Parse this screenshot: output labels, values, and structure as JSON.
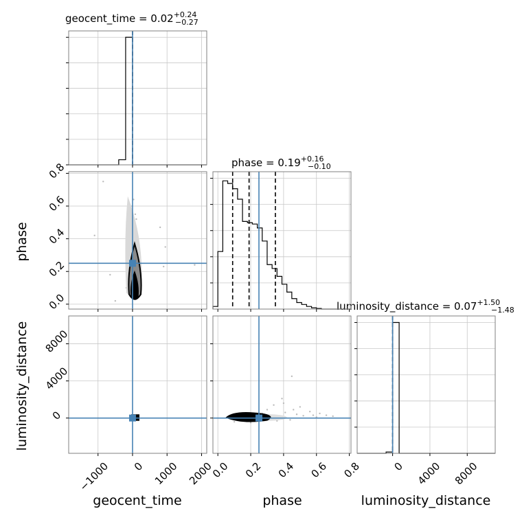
{
  "colors": {
    "truth": "#4682b4",
    "hist": "#000000",
    "grid": "#c8c8c8",
    "frame": "#7f7f7f",
    "scatter": "#bbbbbb"
  },
  "titles": {
    "geocent_time": {
      "main": "geocent_time = 0.02",
      "sup": "+0.24",
      "sub": "−0.27"
    },
    "phase": {
      "main": "phase = 0.19",
      "sup": "+0.16",
      "sub": "−0.10"
    },
    "luminosity_distance": {
      "main": "luminosity_distance = 0.07",
      "sup": "+1.50",
      "sub": "−1.48"
    }
  },
  "axis_labels": {
    "x": [
      "geocent_time",
      "phase",
      "luminosity_distance"
    ],
    "y": [
      "phase",
      "luminosity_distance"
    ]
  },
  "chart_data": {
    "type": "corner",
    "parameters": [
      "geocent_time",
      "phase",
      "luminosity_distance"
    ],
    "truths": {
      "geocent_time": 0,
      "phase": 0.25,
      "luminosity_distance": 0
    },
    "ranges": {
      "geocent_time": [
        -1850,
        2150
      ],
      "phase": [
        -0.03,
        0.81
      ],
      "luminosity_distance": [
        -3800,
        11000
      ]
    },
    "ticks": {
      "geocent_time": [
        -1000,
        0,
        1000,
        2000
      ],
      "phase": [
        0.0,
        0.2,
        0.4,
        0.6,
        0.8
      ],
      "phase_x": [
        0.0,
        0.2,
        0.4,
        0.6,
        0.8
      ],
      "luminosity_distance_y": [
        0,
        4000,
        8000
      ],
      "luminosity_distance_x": [
        0,
        4000,
        8000
      ]
    },
    "tick_labels": {
      "geocent_time": [
        "−1000",
        "0",
        "1000",
        "2000"
      ],
      "phase_y": [
        "0.0",
        "0.2",
        "0.4",
        "0.6",
        "0.8"
      ],
      "phase_x": [
        "0.0",
        "0.2",
        "0.4",
        "0.6",
        "0.8"
      ],
      "luminosity_distance": [
        "0",
        "4000",
        "8000"
      ]
    },
    "quantiles": {
      "geocent_time": [
        0.02
      ],
      "phase": [
        0.09,
        0.19,
        0.35
      ],
      "luminosity_distance": [
        0.07
      ]
    },
    "hist_geocent_time": {
      "edges": [
        -1850,
        -400,
        -200,
        0,
        200,
        2150
      ],
      "heights": [
        0,
        0.04,
        1.0,
        0,
        0
      ],
      "ymax": 1.05
    },
    "hist_phase": {
      "edges": [
        -0.03,
        0.0,
        0.03,
        0.06,
        0.09,
        0.12,
        0.15,
        0.18,
        0.21,
        0.24,
        0.27,
        0.3,
        0.33,
        0.36,
        0.39,
        0.42,
        0.45,
        0.48,
        0.51,
        0.54,
        0.57,
        0.6,
        0.63,
        0.66,
        0.69,
        0.72,
        0.75,
        0.78,
        0.81
      ],
      "heights": [
        0.02,
        0.44,
        0.98,
        0.96,
        0.92,
        0.84,
        0.67,
        0.66,
        0.65,
        0.62,
        0.52,
        0.34,
        0.31,
        0.25,
        0.19,
        0.13,
        0.08,
        0.05,
        0.035,
        0.02,
        0.01,
        0.005,
        0.0,
        0.0,
        0.0,
        0.0,
        0.0,
        0.0
      ],
      "ymax": 1.05
    },
    "hist_luminosity_distance": {
      "edges": [
        -3800,
        -700,
        0,
        700,
        11000
      ],
      "heights": [
        0,
        0.01,
        1.0,
        0
      ],
      "ymax": 1.05
    },
    "scatter_phase_vs_time": [
      [
        -850,
        0.75
      ],
      [
        -650,
        0.18
      ],
      [
        -500,
        0.02
      ],
      [
        -1100,
        0.42
      ],
      [
        800,
        0.47
      ],
      [
        950,
        0.35
      ],
      [
        900,
        0.23
      ],
      [
        1800,
        0.24
      ],
      [
        30,
        0.64
      ],
      [
        -80,
        0.57
      ],
      [
        -60,
        0.46
      ],
      [
        110,
        0.52
      ],
      [
        -30,
        0.38
      ],
      [
        60,
        0.44
      ],
      [
        -120,
        0.28
      ],
      [
        150,
        0.31
      ],
      [
        40,
        0.05
      ],
      [
        -40,
        0.07
      ],
      [
        200,
        0.12
      ],
      [
        -180,
        0.1
      ],
      [
        80,
        0.55
      ],
      [
        -10,
        0.6
      ],
      [
        120,
        0.37
      ],
      [
        -90,
        0.15
      ],
      [
        20,
        0.33
      ],
      [
        70,
        0.2
      ],
      [
        -150,
        0.24
      ],
      [
        160,
        0.08
      ]
    ],
    "scatter_dist_vs_phase": [
      [
        0.45,
        4500
      ],
      [
        0.39,
        2100
      ],
      [
        0.34,
        1400
      ],
      [
        0.5,
        1200
      ],
      [
        0.62,
        500
      ],
      [
        0.56,
        700
      ],
      [
        0.66,
        300
      ],
      [
        0.7,
        200
      ],
      [
        0.3,
        900
      ],
      [
        0.46,
        900
      ],
      [
        0.58,
        300
      ],
      [
        0.41,
        600
      ],
      [
        0.27,
        500
      ],
      [
        0.52,
        250
      ],
      [
        0.48,
        400
      ],
      [
        0.36,
        -300
      ],
      [
        0.44,
        -200
      ],
      [
        0.2,
        -500
      ],
      [
        0.1,
        -400
      ],
      [
        0.33,
        300
      ],
      [
        0.6,
        100
      ],
      [
        0.4,
        1600
      ]
    ]
  }
}
